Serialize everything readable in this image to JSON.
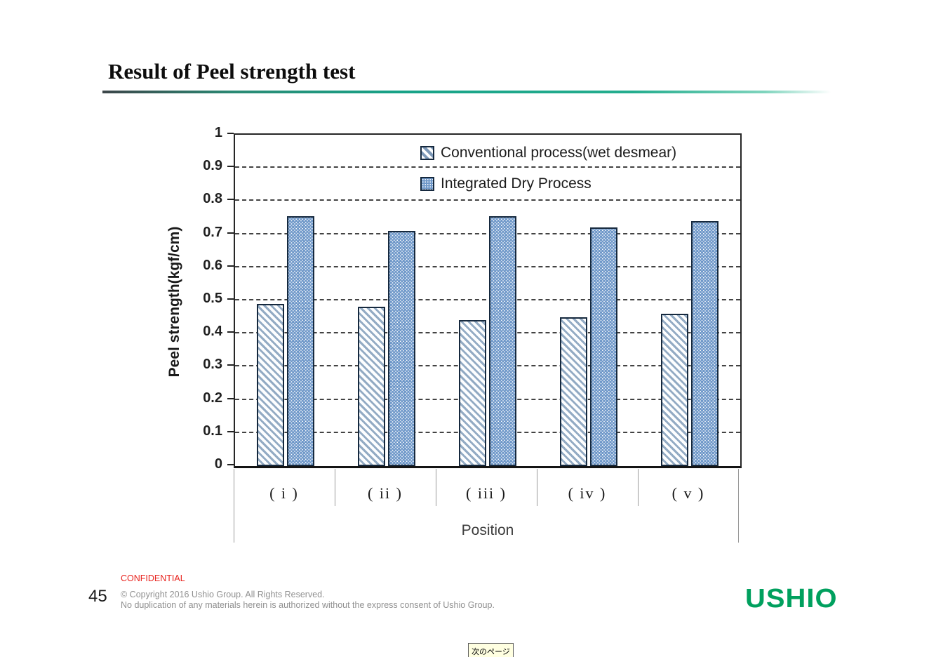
{
  "slide": {
    "title": "Result of Peel strength test",
    "page_number": "45",
    "confidential_label": "CONFIDENTIAL",
    "copyright_line1": "© Copyright 2016 Ushio Group.  All Rights Reserved.",
    "copyright_line2": "No duplication of any materials herein is authorized without the express consent of Ushio Group.",
    "logo_text": "USHIO",
    "tooltip_text": "次のページ"
  },
  "colors": {
    "accent_teal": "#17a287",
    "logo_green": "#00a05e",
    "confidential_red": "#e8231e",
    "dry_bar_fill": "#6f98c9",
    "bar_border_navy": "#16293e",
    "hatch_stripe_blue": "#93abc4",
    "tooltip_background": "#ffffe1"
  },
  "chart_data": {
    "type": "bar",
    "title": "",
    "categories": [
      "( i )",
      "( ii )",
      "( iii )",
      "( iv )",
      "( v )"
    ],
    "series": [
      {
        "name": "Conventional process(wet desmear)",
        "pattern": "hatch",
        "values": [
          0.49,
          0.48,
          0.44,
          0.45,
          0.46
        ]
      },
      {
        "name": "Integrated Dry Process",
        "pattern": "dots",
        "values": [
          0.755,
          0.71,
          0.755,
          0.72,
          0.74
        ]
      }
    ],
    "xlabel": "Position",
    "ylabel": "Peel strength(kgf/cm)",
    "ylim": [
      0,
      1
    ],
    "ytick_step": 0.1,
    "ytick_labels": [
      "1",
      "0.9",
      "0.8",
      "0.7",
      "0.6",
      "0.5",
      "0.4",
      "0.3",
      "0.2",
      "0.1",
      "0"
    ],
    "grid": "horizontal-dashed",
    "legend_position": "inside-top-center"
  }
}
